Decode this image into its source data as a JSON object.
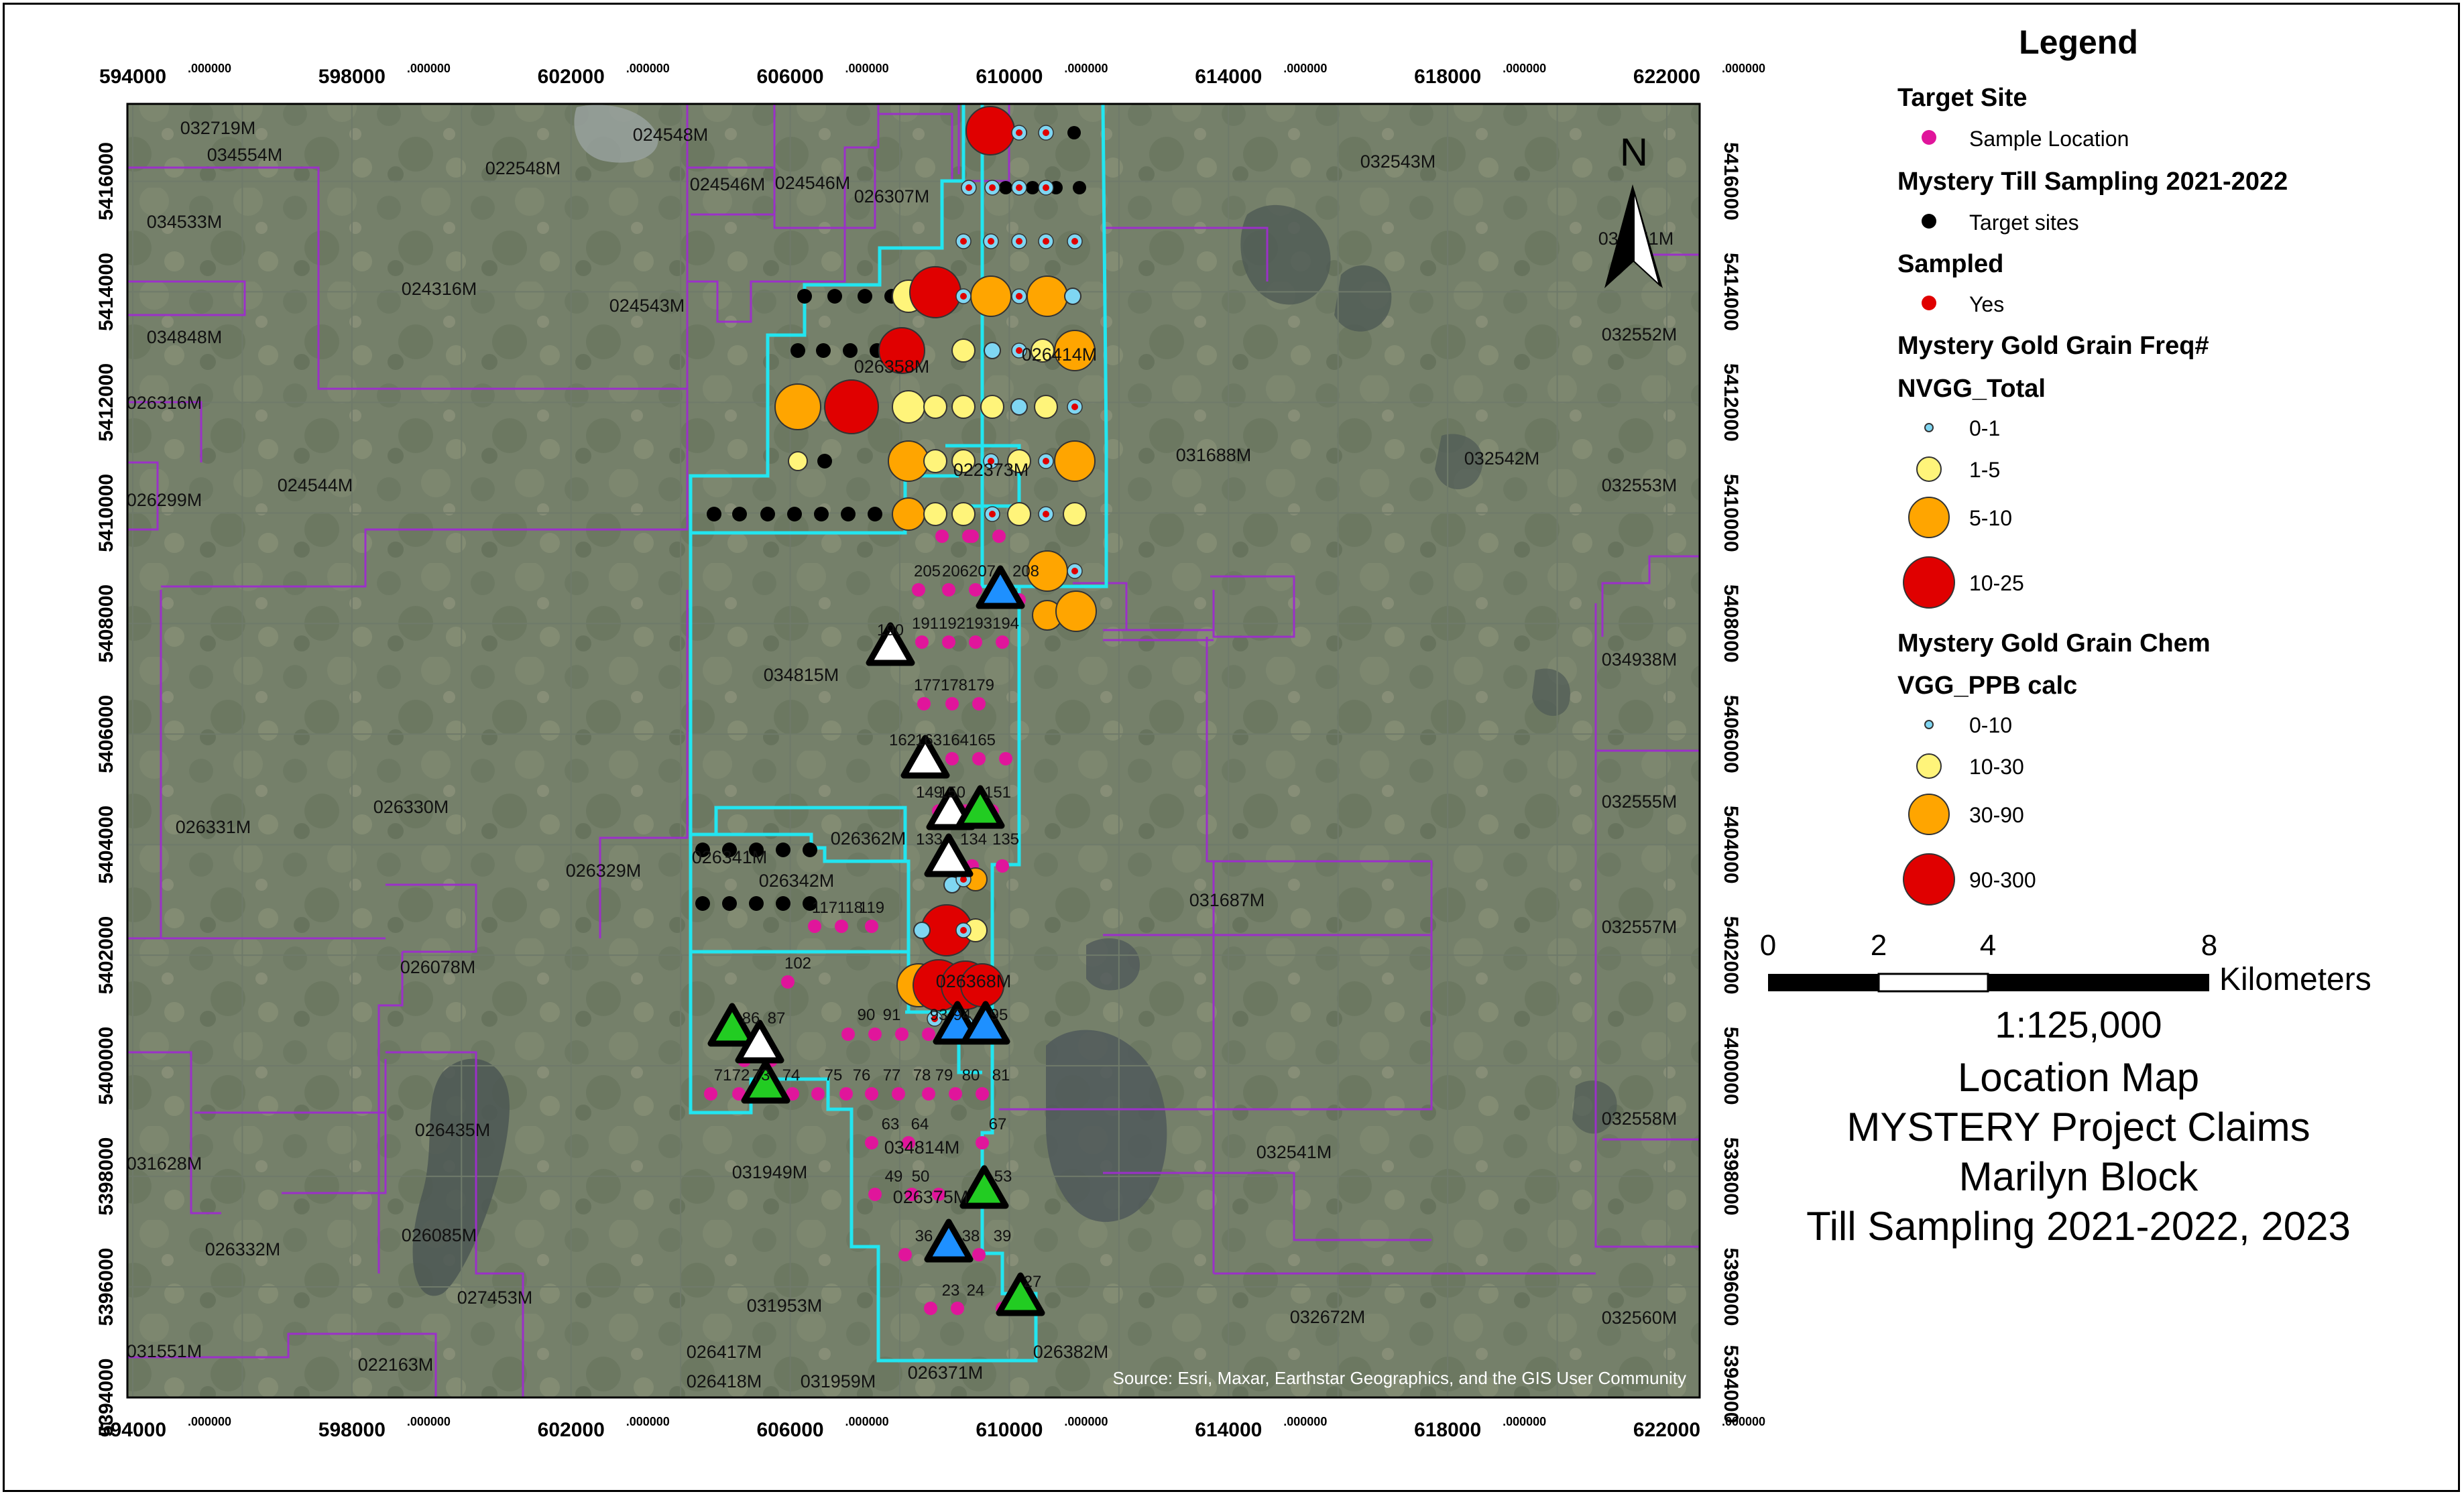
{
  "map": {
    "x_ticks": [
      "594000",
      "598000",
      "602000",
      "606000",
      "610000",
      "614000",
      "618000",
      "622000"
    ],
    "x_tick_suffix": ".000000",
    "y_ticks": [
      "5416000",
      "5414000",
      "5412000",
      "5410000",
      "5408000",
      "5406000",
      "5404000",
      "5402000",
      "5400000",
      "5398000",
      "5396000",
      "5394000"
    ],
    "claims": [
      "032719M",
      "034554M",
      "024548M",
      "022548M",
      "024546M",
      "024546M",
      "026307M",
      "032543M",
      "034533M",
      "032551M",
      "024316M",
      "024543M",
      "034848M",
      "026358M",
      "026414M",
      "032552M",
      "026316M",
      "031688M",
      "032542M",
      "022373M",
      "026299M",
      "024544M",
      "032553M",
      "034815M",
      "034938M",
      "026331M",
      "026330M",
      "026362M",
      "026341M",
      "026342M",
      "026329M",
      "031687M",
      "032555M",
      "026078M",
      "026368M",
      "032557M",
      "026435M",
      "031628M",
      "031949M",
      "034814M",
      "026375M",
      "032541M",
      "032558M",
      "026332M",
      "026085M",
      "027453M",
      "031953M",
      "032672M",
      "026382M",
      "032560M",
      "031551M",
      "022163M",
      "026417M",
      "026418M",
      "031959M",
      "026371M"
    ],
    "site_ids": [
      "205",
      "206",
      "207",
      "208",
      "191",
      "192",
      "193",
      "194",
      "190",
      "177",
      "178",
      "179",
      "162",
      "163",
      "164",
      "165",
      "149",
      "150",
      "151",
      "133",
      "134",
      "135",
      "117",
      "118",
      "119",
      "102",
      "90",
      "91",
      "93",
      "94",
      "95",
      "86",
      "87",
      "71",
      "72",
      "73",
      "74",
      "75",
      "76",
      "77",
      "78",
      "79",
      "80",
      "81",
      "63",
      "64",
      "67",
      "49",
      "50",
      "53",
      "36",
      "38",
      "39",
      "23",
      "24",
      "27"
    ],
    "attribution": "Source: Esri, Maxar, Earthstar Geographics, and the GIS User Community"
  },
  "north_arrow": {
    "label": "N"
  },
  "legend": {
    "title": "Legend",
    "target_site": {
      "heading": "Target Site",
      "item": "Sample Location",
      "color": "#e0159b"
    },
    "mystery_till": {
      "heading": "Mystery Till Sampling 2021-2022",
      "item": "Target sites",
      "color": "#000000"
    },
    "sampled": {
      "heading": "Sampled",
      "item": "Yes",
      "color": "#e00000"
    },
    "grain_freq": {
      "heading": "Mystery Gold Grain Freq#",
      "field": "NVGG_Total",
      "classes": [
        {
          "label": "0-1",
          "color": "#7fd6f2"
        },
        {
          "label": "1-5",
          "color": "#fff47a"
        },
        {
          "label": "5-10",
          "color": "#ffa500"
        },
        {
          "label": "10-25",
          "color": "#e00000"
        }
      ]
    },
    "grain_chem": {
      "heading": "Mystery Gold Grain Chem",
      "field": "VGG_PPB calc",
      "classes": [
        {
          "label": "0-10",
          "color": "#7fd6f2"
        },
        {
          "label": "10-30",
          "color": "#fff47a"
        },
        {
          "label": "30-90",
          "color": "#ffa500"
        },
        {
          "label": "90-300",
          "color": "#e00000"
        }
      ]
    }
  },
  "scale_bar": {
    "ticks": [
      "0",
      "2",
      "4",
      "8"
    ],
    "unit": "Kilometers",
    "ratio": "1:125,000"
  },
  "title_block": {
    "line1": "Location Map",
    "line2": "MYSTERY Project Claims",
    "line3": "Marilyn Block",
    "line4": "Till Sampling 2021-2022, 2023"
  },
  "colors": {
    "claim_outline": "#9b30c8",
    "block_outline": "#22e5f0",
    "grid": "#6f7a6a",
    "triangle_white": "#ffffff",
    "triangle_green": "#22cc22",
    "triangle_blue": "#1e90ff"
  }
}
